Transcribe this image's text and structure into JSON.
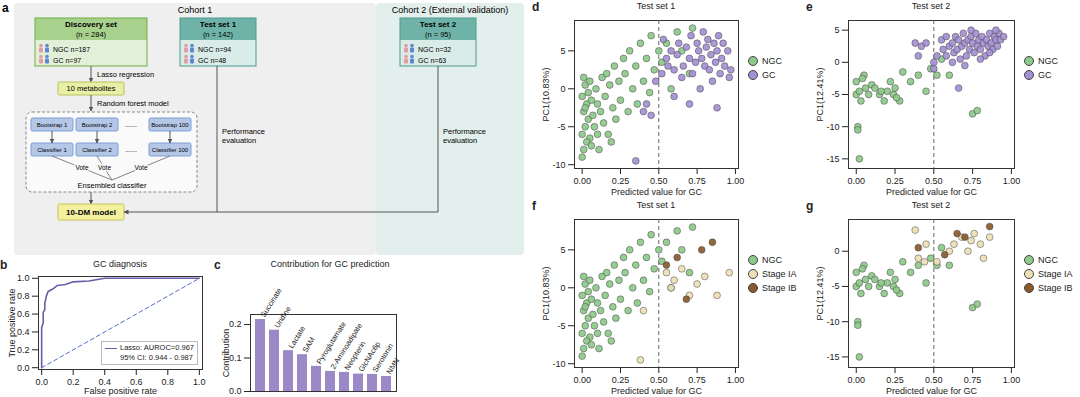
{
  "diagram": {
    "panel": "a",
    "cohorts": [
      "Cohort 1",
      "Cohort 2 (External validation)"
    ],
    "sets": [
      {
        "title": "Discovery set",
        "n": "(n = 284)",
        "groups": [
          "NGC n=187",
          "GC n=97"
        ]
      },
      {
        "title": "Test set 1",
        "n": "(n = 142)",
        "groups": [
          "NGC n=94",
          "GC n=48"
        ]
      },
      {
        "title": "Test set 2",
        "n": "(n = 95)",
        "groups": [
          "NGC n=32",
          "GC n=63"
        ]
      }
    ],
    "lasso": "Lasso regression",
    "metabolites": "10 metabolites",
    "random_forest": "Random forest model",
    "bootstraps": [
      "Bootstrap 1",
      "Bootstrap 2",
      "......",
      "Bootstrap 100"
    ],
    "classifiers": [
      "Classifier 1",
      "Classifier 2",
      "......",
      "Classifier 100"
    ],
    "votes": [
      "Vote",
      "Vote",
      "Vote"
    ],
    "ensemble": "Ensembled classifier",
    "model": "10-DM model",
    "evaluations": [
      "Performance evaluation",
      "Performance evaluation"
    ]
  },
  "chart_data": [
    {
      "panel": "b",
      "type": "line",
      "title": "GC diagnosis",
      "x_label": "False positive rate",
      "y_label": "True positive rate",
      "series": [
        {
          "name": "Lasso: AUROC=0.967",
          "color": "#6c5ba7",
          "x": [
            0,
            0,
            0.01,
            0.01,
            0.02,
            0.02,
            0.03,
            0.04,
            0.05,
            0.07,
            0.1,
            0.15,
            0.2,
            0.3,
            0.4,
            1
          ],
          "values": [
            0,
            0.45,
            0.5,
            0.62,
            0.65,
            0.72,
            0.8,
            0.85,
            0.86,
            0.88,
            0.92,
            0.93,
            0.96,
            0.97,
            1,
            1
          ]
        }
      ],
      "annotation": "95% CI: 0.944 - 0.987",
      "reference_line": {
        "x": [
          0,
          1
        ],
        "values": [
          0,
          1
        ],
        "line_style": "dashed",
        "color": "#4f6fc9"
      },
      "legend": "lower right",
      "xlim": [
        -0.02,
        1.02
      ],
      "xticks": [
        {
          "value": 0,
          "label": "0.0"
        },
        0.2,
        0.4,
        0.6,
        0.8,
        {
          "value": 1,
          "label": "1.0"
        }
      ],
      "ylim": [
        -0.02,
        1.02
      ],
      "yticks": [
        {
          "value": 0,
          "label": "0.0"
        },
        0.2,
        0.4,
        0.6,
        0.8,
        {
          "value": 1,
          "label": "1.0"
        }
      ]
    },
    {
      "panel": "c",
      "type": "bar",
      "title": "Contribution for GC prediction",
      "y_label": "Contribution",
      "categories": [
        "Succinate",
        "Uridine",
        "Lactate",
        "SAM",
        "Pyroglutamate",
        "2-Aminoadipate",
        "Neopterin",
        "GlcNAc6p",
        "Serotonin",
        "NMN"
      ],
      "values": [
        0.215,
        0.183,
        0.122,
        0.11,
        0.075,
        0.06,
        0.057,
        0.052,
        0.051,
        0.045
      ],
      "color": "#9a89c6",
      "tick_labels": "y",
      "ylim": [
        0,
        0.23
      ],
      "yticks": [
        {
          "value": 0,
          "label": "0.0"
        },
        0.1,
        0.2
      ]
    },
    {
      "panel": "d",
      "type": "scatter",
      "title": "Test set 1",
      "x_label": "Predicted value for GC",
      "y_label": "PC1(10.83%)",
      "series": [
        {
          "name": "NGC",
          "color": "#8dc98a",
          "x": [
            0.0,
            0.01,
            0.02,
            0.0,
            0.01,
            0.03,
            0.02,
            0.04,
            0.05,
            0.03,
            0.06,
            0.07,
            0.05,
            0.08,
            0.09,
            0.1,
            0.1,
            0.12,
            0.13,
            0.14,
            0.15,
            0.16,
            0.17,
            0.18,
            0.2,
            0.21,
            0.22,
            0.24,
            0.25,
            0.27,
            0.28,
            0.3,
            0.31,
            0.33,
            0.35,
            0.36,
            0.38,
            0.4,
            0.42,
            0.44,
            0.45,
            0.47,
            0.5,
            0.52,
            0.55,
            0.58,
            0.62,
            0.65,
            0.7,
            0.72,
            0.0,
            0.02,
            0.04,
            0.06,
            0.01,
            0.11,
            0.19
          ],
          "values": [
            -1,
            -3,
            -5,
            -6,
            -8,
            -2,
            0.5,
            -4,
            -6.5,
            -7,
            -1.5,
            -3.5,
            1,
            -5,
            0,
            -2,
            -6,
            -3,
            1.5,
            -4.5,
            -1,
            2,
            -6,
            0.5,
            -2.5,
            3,
            -4,
            1,
            -1.5,
            4,
            2,
            -3,
            5,
            0,
            3,
            -2,
            6,
            1,
            4,
            -0.5,
            7,
            2.5,
            5,
            3.5,
            6,
            0,
            7.5,
            5,
            2,
            8,
            -9,
            -2.5,
            -0.5,
            -7.5,
            1.5,
            -8,
            -7
          ]
        },
        {
          "name": "GC",
          "color": "#a48fd4",
          "x": [
            0.35,
            0.4,
            0.42,
            0.48,
            0.52,
            0.55,
            0.56,
            0.58,
            0.6,
            0.62,
            0.63,
            0.65,
            0.66,
            0.68,
            0.7,
            0.71,
            0.72,
            0.74,
            0.75,
            0.76,
            0.77,
            0.78,
            0.79,
            0.8,
            0.81,
            0.82,
            0.83,
            0.84,
            0.85,
            0.86,
            0.87,
            0.88,
            0.89,
            0.9,
            0.91,
            0.92,
            0.93,
            0.95,
            0.96,
            0.6,
            0.7,
            0.88,
            0.97,
            0.53,
            0.45
          ],
          "values": [
            -9.5,
            -3,
            -2,
            1,
            2,
            4,
            3,
            5,
            2.5,
            4.5,
            6,
            1.5,
            3,
            5.5,
            4,
            7,
            2,
            3.5,
            6,
            5,
            0,
            4,
            7.5,
            3,
            5.5,
            6.5,
            2.5,
            4.5,
            1,
            6,
            3.5,
            5,
            7,
            2,
            4,
            6,
            3,
            5,
            1.5,
            -1,
            -2,
            -2.5,
            2.5,
            6.5,
            -3.5
          ]
        }
      ],
      "reference_line": {
        "x": 0.5,
        "line_style": "dashed"
      },
      "legend": "right",
      "xlim": [
        -0.05,
        1.02
      ],
      "xticks": [
        {
          "value": 0,
          "label": "0.00"
        },
        0.25,
        {
          "value": 0.5,
          "label": "0.50"
        },
        0.75,
        {
          "value": 1,
          "label": "1.00"
        }
      ],
      "ylim": [
        -10.5,
        9
      ],
      "yticks": [
        -10,
        -5,
        0,
        5
      ]
    },
    {
      "panel": "e",
      "type": "scatter",
      "title": "Test set 2",
      "x_label": "Predicted value for GC",
      "y_label": "PC1(12.41%)",
      "series": [
        {
          "name": "NGC",
          "color": "#8dc98a",
          "x": [
            0.0,
            0.01,
            0.02,
            0.0,
            0.02,
            0.03,
            0.05,
            0.06,
            0.08,
            0.1,
            0.12,
            0.15,
            0.18,
            0.2,
            0.22,
            0.24,
            0.25,
            0.28,
            0.3,
            0.35,
            0.4,
            0.45,
            0.48,
            0.52,
            0.55,
            0.6,
            0.75,
            0.78,
            0.01,
            0.04,
            0.16,
            0.26
          ],
          "values": [
            -5,
            -10,
            -15,
            -3,
            -4.5,
            -6,
            -2,
            -4,
            -5,
            -3.5,
            -4,
            -5,
            -6,
            -4.5,
            -3,
            -5,
            -4,
            -6,
            -1.5,
            -3,
            -2,
            -4.5,
            -1,
            -2,
            0.5,
            -2,
            -8,
            -7.5,
            -10.5,
            -2.5,
            -4.5,
            -5.5
          ]
        },
        {
          "name": "GC",
          "color": "#a48fd4",
          "x": [
            0.38,
            0.4,
            0.42,
            0.45,
            0.5,
            0.52,
            0.55,
            0.56,
            0.58,
            0.6,
            0.62,
            0.63,
            0.64,
            0.65,
            0.66,
            0.67,
            0.68,
            0.69,
            0.7,
            0.71,
            0.72,
            0.73,
            0.74,
            0.75,
            0.76,
            0.77,
            0.78,
            0.79,
            0.8,
            0.81,
            0.82,
            0.83,
            0.84,
            0.85,
            0.86,
            0.87,
            0.88,
            0.89,
            0.9,
            0.91,
            0.92,
            0.93,
            0.95,
            0.66,
            0.5,
            0.62,
            0.74,
            0.8,
            0.86,
            0.9,
            0.7,
            0.58
          ],
          "values": [
            3,
            1,
            2.5,
            3,
            0,
            1,
            3.5,
            2,
            4,
            2.5,
            3,
            1.5,
            4,
            2,
            3.5,
            0.5,
            2.5,
            4.5,
            3,
            1,
            3.5,
            2,
            4,
            3,
            1.5,
            4.5,
            2.5,
            3.5,
            2,
            4,
            3,
            1,
            3.5,
            2.5,
            4.5,
            3,
            2,
            4,
            3.5,
            2.5,
            4.5,
            3.5,
            4,
            -4,
            -1,
            0,
            5,
            0.5,
            1.5,
            5,
            -0.5,
            1
          ]
        }
      ],
      "reference_line": {
        "x": 0.5,
        "line_style": "dashed"
      },
      "legend": "right",
      "xlim": [
        -0.05,
        1.02
      ],
      "xticks": [
        {
          "value": 0,
          "label": "0.00"
        },
        0.25,
        {
          "value": 0.5,
          "label": "0.50"
        },
        0.75,
        {
          "value": 1,
          "label": "1.00"
        }
      ],
      "ylim": [
        -16.5,
        6.5
      ],
      "yticks": [
        -15,
        -10,
        -5,
        0,
        5
      ]
    },
    {
      "panel": "f",
      "type": "scatter",
      "title": "Test set 1",
      "x_label": "Predicted value for GC",
      "y_label": "PC1(10.83%)",
      "series": [
        {
          "name": "NGC",
          "color": "#8dc98a",
          "x": [
            0.0,
            0.01,
            0.02,
            0.0,
            0.01,
            0.03,
            0.02,
            0.04,
            0.05,
            0.03,
            0.06,
            0.07,
            0.05,
            0.08,
            0.09,
            0.1,
            0.1,
            0.12,
            0.13,
            0.14,
            0.15,
            0.16,
            0.17,
            0.18,
            0.2,
            0.21,
            0.22,
            0.24,
            0.25,
            0.27,
            0.28,
            0.3,
            0.31,
            0.33,
            0.35,
            0.36,
            0.38,
            0.4,
            0.42,
            0.44,
            0.45,
            0.47,
            0.5,
            0.52,
            0.55,
            0.58,
            0.62,
            0.65,
            0.7,
            0.72,
            0.0,
            0.02,
            0.04,
            0.06,
            0.01,
            0.11,
            0.19
          ],
          "values": [
            -1,
            -3,
            -5,
            -6,
            -8,
            -2,
            0.5,
            -4,
            -6.5,
            -7,
            -1.5,
            -3.5,
            1,
            -5,
            0,
            -2,
            -6,
            -3,
            1.5,
            -4.5,
            -1,
            2,
            -6,
            0.5,
            -2.5,
            3,
            -4,
            1,
            -1.5,
            4,
            2,
            -3,
            5,
            0,
            3,
            -2,
            6,
            1,
            4,
            -0.5,
            7,
            2.5,
            5,
            3.5,
            6,
            0,
            7.5,
            5,
            2,
            8,
            -9,
            -2.5,
            -0.5,
            -7.5,
            1.5,
            -8,
            -7
          ]
        },
        {
          "name": "Stage IA",
          "color": "#eee0b4",
          "x": [
            0.38,
            0.4,
            0.55,
            0.58,
            0.6,
            0.65,
            0.7,
            0.75,
            0.8,
            0.88,
            0.96
          ],
          "values": [
            -9.5,
            -3,
            2,
            0,
            1,
            2.5,
            -1,
            0.5,
            1.5,
            -1,
            2
          ]
        },
        {
          "name": "Stage IB",
          "color": "#8a5a2e",
          "x": [
            0.62,
            0.55,
            0.78,
            0.85,
            0.68
          ],
          "values": [
            4,
            3,
            5,
            6,
            -1.5
          ]
        }
      ],
      "reference_line": {
        "x": 0.5,
        "line_style": "dashed"
      },
      "legend": "right",
      "xlim": [
        -0.05,
        1.02
      ],
      "xticks": [
        {
          "value": 0,
          "label": "0.00"
        },
        0.25,
        {
          "value": 0.5,
          "label": "0.50"
        },
        0.75,
        {
          "value": 1,
          "label": "1.00"
        }
      ],
      "ylim": [
        -10.5,
        9
      ],
      "yticks": [
        -10,
        -5,
        0,
        5
      ]
    },
    {
      "panel": "g",
      "type": "scatter",
      "title": "Test set 2",
      "x_label": "Predicted value for GC",
      "y_label": "PC1(12.41%)",
      "series": [
        {
          "name": "NGC",
          "color": "#8dc98a",
          "x": [
            0.0,
            0.01,
            0.02,
            0.0,
            0.02,
            0.03,
            0.05,
            0.06,
            0.08,
            0.1,
            0.12,
            0.15,
            0.18,
            0.2,
            0.22,
            0.24,
            0.25,
            0.28,
            0.3,
            0.35,
            0.4,
            0.45,
            0.48,
            0.52,
            0.55,
            0.6,
            0.75,
            0.78,
            0.01,
            0.04,
            0.16,
            0.26
          ],
          "values": [
            -5,
            -10,
            -15,
            -3,
            -4.5,
            -6,
            -2,
            -4,
            -5,
            -3.5,
            -4,
            -5,
            -6,
            -4.5,
            -3,
            -5,
            -4,
            -6,
            -1.5,
            -3,
            -2,
            -4.5,
            -1,
            -2,
            0.5,
            -2,
            -8,
            -7.5,
            -10.5,
            -2.5,
            -4.5,
            -5.5
          ]
        },
        {
          "name": "Stage IA",
          "color": "#eee0b4",
          "x": [
            0.38,
            0.4,
            0.45,
            0.52,
            0.6,
            0.63,
            0.68,
            0.72,
            0.74,
            0.76,
            0.8,
            0.82,
            0.86,
            0.44
          ],
          "values": [
            3,
            -1,
            1,
            -1.5,
            0,
            1,
            2,
            0,
            1.5,
            2.5,
            1,
            -1,
            2,
            -1.5
          ]
        },
        {
          "name": "Stage IB",
          "color": "#8a5a2e",
          "x": [
            0.4,
            0.65,
            0.7,
            0.86,
            0.57
          ],
          "values": [
            0.5,
            2.5,
            2,
            3.5,
            -0.5
          ]
        }
      ],
      "reference_line": {
        "x": 0.5,
        "line_style": "dashed"
      },
      "legend": "right",
      "xlim": [
        -0.05,
        1.02
      ],
      "xticks": [
        {
          "value": 0,
          "label": "0.00"
        },
        0.25,
        {
          "value": 0.5,
          "label": "0.50"
        },
        0.75,
        {
          "value": 1,
          "label": "1.00"
        }
      ],
      "ylim": [
        -16.5,
        4.5
      ],
      "yticks": [
        -15,
        -10,
        -5,
        0
      ]
    }
  ]
}
